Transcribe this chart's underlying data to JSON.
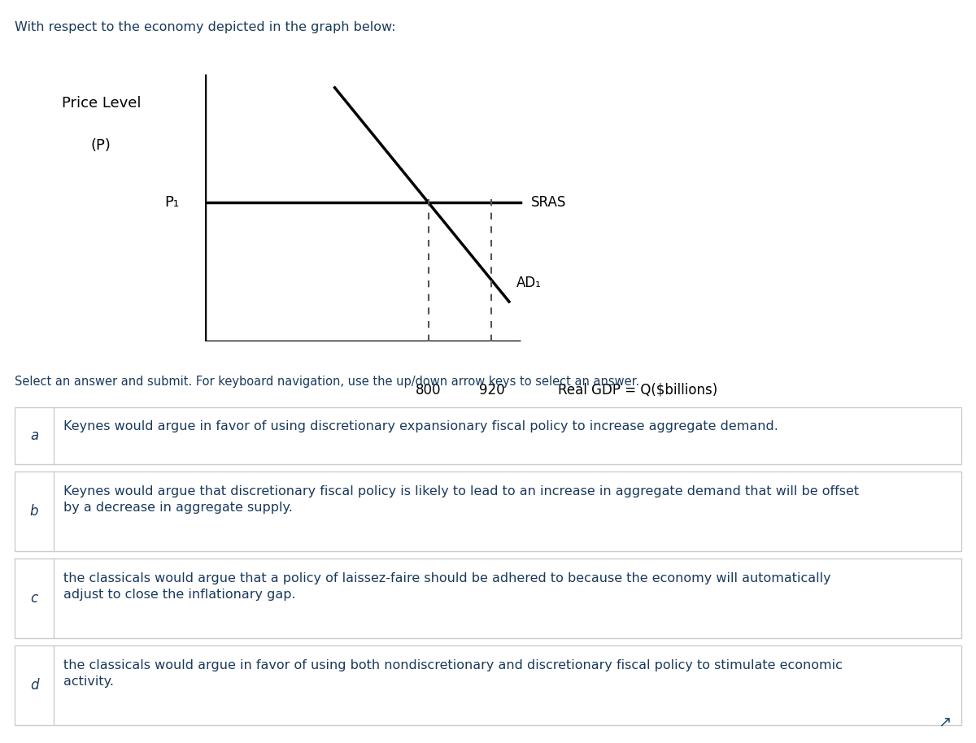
{
  "header_text": "With respect to the economy depicted in the graph below:",
  "ylabel_line1": "Price Level",
  "ylabel_line2": "(P)",
  "xlabel": "Real GDP = Q($billions)",
  "p1_label": "P₁",
  "sras_label": "SRAS",
  "ad_label": "AD₁",
  "gdp_800": "800",
  "gdp_920": "920",
  "select_text": "Select an answer and submit. For keyboard navigation, use the up/down arrow keys to select an answer.",
  "options": [
    {
      "label": "a",
      "text": "Keynes would argue in favor of using discretionary expansionary fiscal policy to increase aggregate demand."
    },
    {
      "label": "b",
      "line1": "Keynes would argue that discretionary fiscal policy is likely to lead to an increase in aggregate demand that will be offset",
      "line2": "by a decrease in aggregate supply."
    },
    {
      "label": "c",
      "line1": "the classicals would argue that a policy of laissez-faire should be adhered to because the economy will automatically",
      "line2": "adjust to close the inflationary gap."
    },
    {
      "label": "d",
      "line1": "the classicals would argue in favor of using both nondiscretionary and discretionary fiscal policy to stimulate economic",
      "line2": "activity."
    }
  ],
  "bg_color": "#ffffff",
  "text_color": "#000000",
  "header_color": "#1a3a5c",
  "option_label_color": "#1a3a5c",
  "option_text_color": "#1a3a5c",
  "border_color": "#cccccc",
  "line_color": "#000000",
  "dashed_color": "#555555",
  "arrow_color": "#1a5276",
  "select_color": "#1a3a5c"
}
